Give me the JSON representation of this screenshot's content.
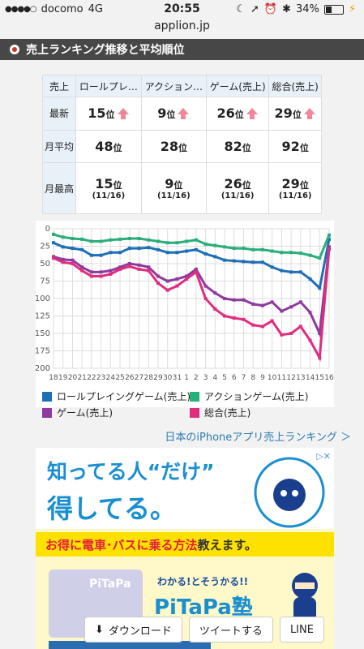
{
  "status_bar": {
    "carrier": "docomo",
    "network": "4G",
    "time": "20:55",
    "battery": "34%",
    "battery_level": 0.34
  },
  "browser": {
    "url": "applion.jp"
  },
  "section": {
    "title": "売上ランキング推移と平均順位"
  },
  "table": {
    "corner": "売上",
    "columns": [
      "ロールプレ…",
      "アクション…",
      "ゲーム(売上)",
      "総合(売上)"
    ],
    "unit": "位",
    "rows": [
      {
        "label": "最新",
        "values": [
          "15",
          "9",
          "26",
          "29"
        ],
        "subs": [
          "",
          "",
          "",
          ""
        ],
        "trend": "up"
      },
      {
        "label": "月平均",
        "values": [
          "48",
          "28",
          "82",
          "92"
        ],
        "subs": [
          "",
          "",
          "",
          ""
        ]
      },
      {
        "label": "月最高",
        "values": [
          "15",
          "9",
          "26",
          "29"
        ],
        "subs": [
          "(11/16)",
          "(11/16)",
          "(11/16)",
          "(11/16)"
        ]
      }
    ]
  },
  "chart_data": {
    "type": "line",
    "x": [
      "18",
      "19",
      "20",
      "21",
      "22",
      "23",
      "24",
      "25",
      "26",
      "27",
      "28",
      "29",
      "30",
      "31",
      "1",
      "2",
      "3",
      "4",
      "5",
      "6",
      "7",
      "8",
      "9",
      "10",
      "11",
      "12",
      "13",
      "14",
      "15",
      "16"
    ],
    "ylim": [
      200,
      0
    ],
    "y_ticks": [
      0,
      25,
      50,
      75,
      100,
      125,
      150,
      175,
      200
    ],
    "grid": true,
    "legend_position": "bottom",
    "series": [
      {
        "name": "ロールプレイングゲーム(売上)",
        "color": "#1f6fb6",
        "values": [
          20,
          26,
          28,
          30,
          38,
          38,
          34,
          34,
          28,
          28,
          27,
          30,
          34,
          34,
          32,
          30,
          36,
          40,
          45,
          46,
          47,
          48,
          48,
          55,
          60,
          62,
          62,
          72,
          85,
          15
        ]
      },
      {
        "name": "アクションゲーム(売上)",
        "color": "#2aae7a",
        "values": [
          8,
          12,
          14,
          15,
          18,
          18,
          16,
          15,
          14,
          14,
          16,
          18,
          20,
          20,
          18,
          16,
          22,
          24,
          26,
          28,
          28,
          30,
          30,
          32,
          34,
          34,
          35,
          38,
          42,
          9
        ]
      },
      {
        "name": "ゲーム(売上)",
        "color": "#8e3a9e",
        "values": [
          40,
          44,
          45,
          55,
          62,
          62,
          60,
          55,
          50,
          52,
          55,
          68,
          75,
          72,
          68,
          58,
          82,
          92,
          100,
          102,
          102,
          108,
          110,
          105,
          118,
          112,
          105,
          120,
          150,
          26
        ]
      },
      {
        "name": "総合(売上)",
        "color": "#e02e7e",
        "values": [
          42,
          48,
          50,
          60,
          68,
          68,
          65,
          58,
          54,
          58,
          60,
          78,
          88,
          82,
          72,
          62,
          100,
          115,
          125,
          128,
          130,
          138,
          140,
          132,
          152,
          150,
          140,
          160,
          185,
          29
        ]
      }
    ]
  },
  "links": {
    "ranking": "日本のiPhoneアプリ売上ランキング ＞"
  },
  "ad": {
    "line1": "知ってる人“だけ”",
    "line2": "得してる。",
    "band_prefix": "お得に",
    "band_highlight": "電車･バスに乗る方法",
    "band_suffix": "教えます。",
    "card_text": "PiTaPa",
    "catch": "わかる!とそうかる!!",
    "brand": "PiTaPa塾",
    "close": "▷✕"
  },
  "share": {
    "download": "ダウンロード",
    "tweet": "ツイートする",
    "line": "LINE"
  }
}
